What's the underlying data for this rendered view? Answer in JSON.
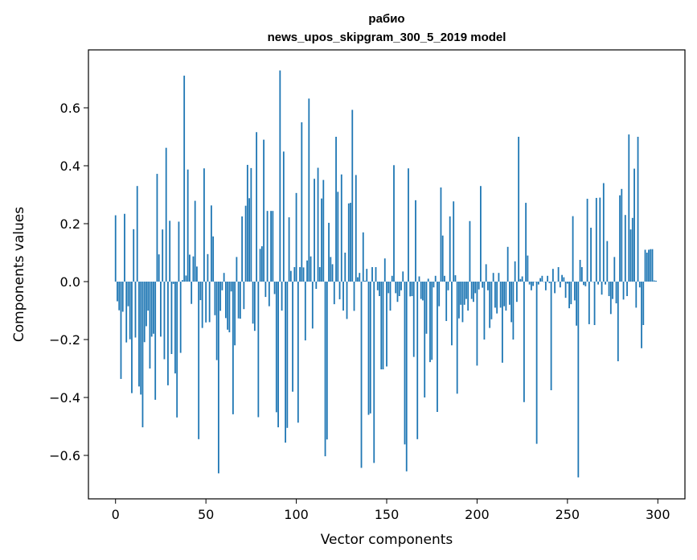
{
  "chart_data": {
    "type": "bar",
    "title": "рабио",
    "subtitle": "news_upos_skipgram_300_5_2019 model",
    "xlabel": "Vector components",
    "ylabel": "Components values",
    "xlim": [
      -15,
      315
    ],
    "ylim": [
      -0.75,
      0.8
    ],
    "xticks": [
      0,
      50,
      100,
      150,
      200,
      250,
      300
    ],
    "xtick_labels": [
      "0",
      "50",
      "100",
      "150",
      "200",
      "250",
      "300"
    ],
    "yticks": [
      -0.6,
      -0.4,
      -0.2,
      0.0,
      0.2,
      0.4,
      0.6
    ],
    "ytick_labels": [
      "−0.6",
      "−0.4",
      "−0.2",
      "0.0",
      "0.2",
      "0.4",
      "0.6"
    ],
    "bar_color": "#1f77b4",
    "grid": false,
    "legend": "none",
    "values": [
      0.229,
      -0.068,
      -0.099,
      -0.336,
      -0.104,
      0.234,
      -0.21,
      -0.085,
      -0.199,
      -0.385,
      0.181,
      -0.193,
      0.33,
      -0.362,
      -0.39,
      -0.503,
      -0.209,
      -0.154,
      -0.1,
      -0.3,
      -0.19,
      -0.18,
      -0.408,
      0.372,
      0.094,
      -0.19,
      0.18,
      -0.268,
      0.462,
      -0.358,
      0.21,
      -0.25,
      -0.008,
      -0.317,
      -0.469,
      0.207,
      -0.246,
      0.005,
      0.711,
      0.021,
      0.387,
      0.093,
      -0.077,
      0.087,
      0.279,
      0.052,
      -0.544,
      -0.064,
      -0.16,
      0.391,
      -0.141,
      0.095,
      -0.14,
      0.263,
      0.156,
      -0.116,
      -0.271,
      -0.662,
      -0.101,
      -0.03,
      0.03,
      -0.126,
      -0.166,
      -0.175,
      -0.034,
      -0.458,
      -0.22,
      0.085,
      -0.127,
      -0.128,
      0.225,
      -0.095,
      0.262,
      0.403,
      0.288,
      0.392,
      -0.145,
      -0.17,
      0.516,
      -0.468,
      0.113,
      0.122,
      0.49,
      -0.053,
      0.244,
      -0.085,
      0.244,
      0.244,
      -0.043,
      -0.451,
      -0.503,
      0.729,
      -0.1,
      0.449,
      -0.556,
      -0.505,
      0.222,
      0.037,
      -0.38,
      0.05,
      0.306,
      -0.487,
      0.05,
      0.55,
      0.049,
      -0.203,
      0.073,
      0.632,
      0.087,
      -0.162,
      0.355,
      -0.025,
      0.393,
      0.05,
      0.287,
      0.351,
      -0.603,
      -0.545,
      0.203,
      0.085,
      0.06,
      -0.078,
      0.5,
      0.31,
      -0.061,
      0.37,
      -0.1,
      0.1,
      -0.129,
      0.27,
      0.272,
      0.593,
      -0.101,
      0.368,
      0.015,
      0.03,
      -0.643,
      0.17,
      0.003,
      0.044,
      -0.46,
      -0.455,
      0.05,
      -0.626,
      0.05,
      -0.03,
      -0.05,
      -0.303,
      -0.303,
      0.08,
      -0.293,
      -0.04,
      -0.1,
      0.02,
      0.402,
      -0.04,
      -0.07,
      -0.05,
      -0.03,
      0.035,
      -0.562,
      -0.655,
      0.391,
      -0.051,
      -0.05,
      -0.26,
      0.281,
      -0.544,
      0.018,
      -0.06,
      -0.065,
      -0.4,
      -0.18,
      0.01,
      -0.278,
      -0.27,
      -0.02,
      0.02,
      -0.45,
      -0.085,
      0.325,
      0.159,
      0.02,
      -0.136,
      -0.03,
      0.225,
      -0.22,
      0.277,
      0.022,
      -0.387,
      -0.127,
      -0.08,
      -0.14,
      -0.08,
      -0.06,
      -0.1,
      0.209,
      -0.06,
      -0.07,
      -0.04,
      -0.29,
      -0.027,
      0.33,
      -0.021,
      -0.2,
      0.06,
      -0.03,
      -0.16,
      -0.13,
      0.03,
      -0.09,
      -0.11,
      0.03,
      -0.09,
      -0.28,
      -0.085,
      -0.1,
      0.12,
      -0.08,
      -0.14,
      -0.2,
      0.07,
      -0.07,
      0.5,
      0.009,
      0.018,
      -0.416,
      0.272,
      0.09,
      -0.01,
      -0.03,
      -0.015,
      0.0,
      -0.56,
      -0.01,
      0.012,
      0.02,
      0.0,
      -0.03,
      0.02,
      -0.005,
      -0.375,
      0.044,
      -0.04,
      0.0,
      0.05,
      -0.02,
      0.023,
      0.015,
      -0.056,
      -0.007,
      -0.092,
      -0.078,
      0.226,
      -0.065,
      -0.152,
      -0.676,
      0.075,
      0.05,
      -0.012,
      -0.016,
      0.286,
      -0.147,
      0.186,
      -0.001,
      -0.15,
      0.289,
      -0.01,
      0.29,
      -0.045,
      0.34,
      -0.01,
      0.14,
      -0.05,
      -0.112,
      -0.06,
      0.085,
      -0.075,
      -0.275,
      0.298,
      0.32,
      -0.062,
      0.23,
      -0.05,
      0.508,
      0.18,
      0.22,
      0.39,
      -0.09,
      0.5,
      -0.02,
      -0.23,
      -0.15,
      0.11,
      0.1,
      0.11,
      0.112,
      0.112,
      0.004,
      0.003
    ]
  }
}
